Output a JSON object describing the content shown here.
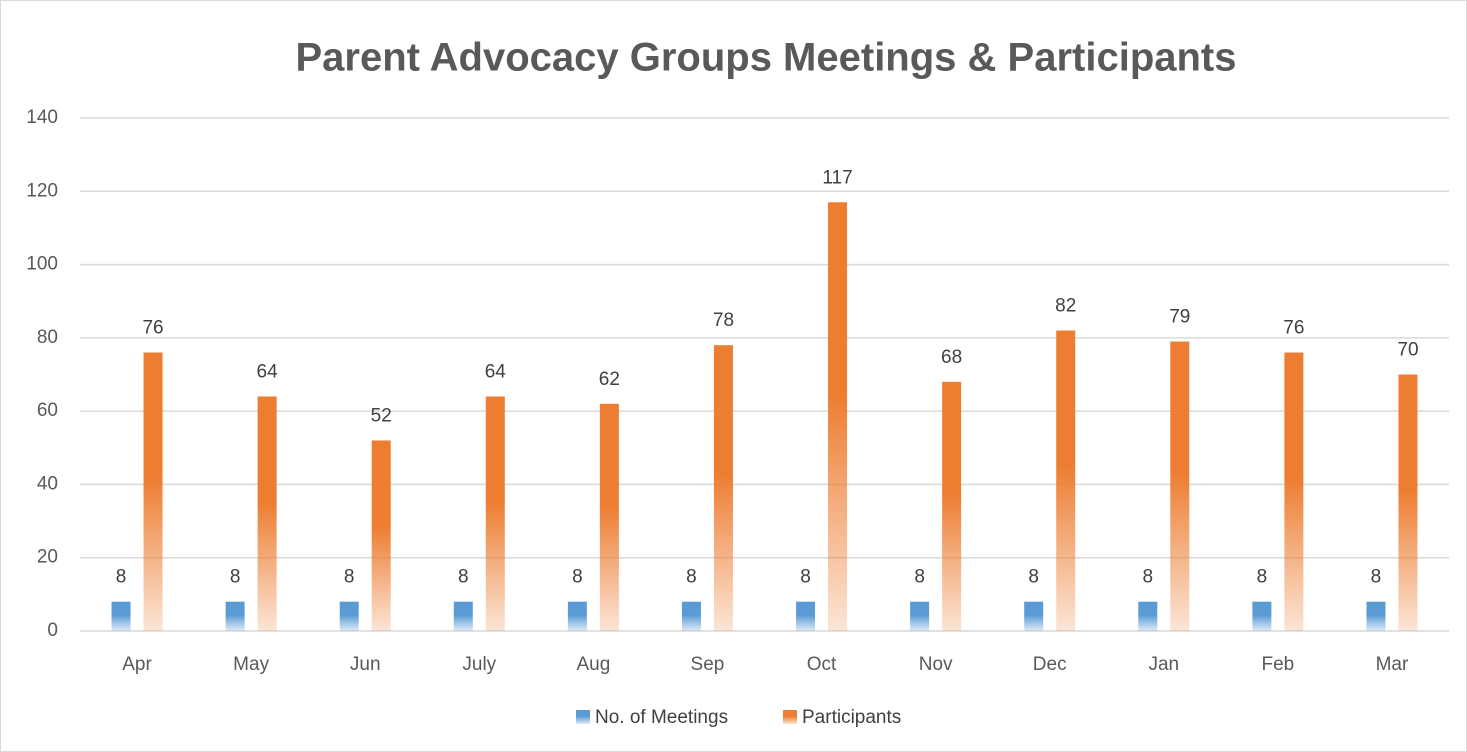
{
  "chart_data": {
    "type": "bar",
    "title": "Parent Advocacy Groups Meetings & Participants",
    "categories": [
      "Apr",
      "May",
      "Jun",
      "July",
      "Aug",
      "Sep",
      "Oct",
      "Nov",
      "Dec",
      "Jan",
      "Feb",
      "Mar"
    ],
    "series": [
      {
        "name": "No. of Meetings",
        "color": "#5b9bd5",
        "values": [
          8,
          8,
          8,
          8,
          8,
          8,
          8,
          8,
          8,
          8,
          8,
          8
        ]
      },
      {
        "name": "Participants",
        "color": "#ed7d31",
        "values": [
          76,
          64,
          52,
          64,
          62,
          78,
          117,
          68,
          82,
          79,
          76,
          70
        ]
      }
    ],
    "ylim": [
      0,
      140
    ],
    "yticks": [
      0,
      20,
      40,
      60,
      80,
      100,
      120,
      140
    ],
    "grid": true,
    "legend": "bottom"
  }
}
